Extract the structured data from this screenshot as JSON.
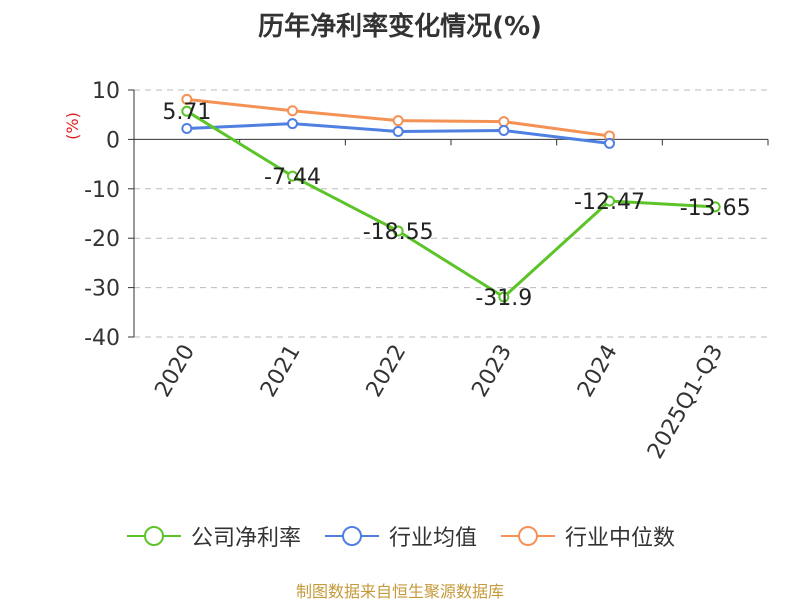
{
  "title": "历年净利率变化情况(%)",
  "source_note": "制图数据来自恒生聚源数据库",
  "colors": {
    "company": "#5cc428",
    "industry_avg": "#4f7fe0",
    "industry_median": "#f49256",
    "axis_unit": "#e02020",
    "text": "#333333",
    "grid": "#bbbbbb",
    "source": "#c59a3a"
  },
  "chart_data": {
    "type": "line",
    "title": "历年净利率变化情况(%)",
    "ylabel": "(%)",
    "xlabel": "",
    "ylim": [
      -40,
      10
    ],
    "yticks": [
      10,
      0,
      -10,
      -20,
      -30,
      -40
    ],
    "grid": true,
    "legend_position": "bottom",
    "categories": [
      "2020",
      "2021",
      "2022",
      "2023",
      "2024",
      "2025Q1-Q3"
    ],
    "series": [
      {
        "name": "公司净利率",
        "key": "company",
        "values": [
          5.71,
          -7.44,
          -18.55,
          -31.9,
          -12.47,
          -13.65
        ],
        "labels": [
          "5.71",
          "-7.44",
          "-18.55",
          "-31.9",
          "-12.47",
          "-13.65"
        ]
      },
      {
        "name": "行业均值",
        "key": "industry_avg",
        "values": [
          2.2,
          3.2,
          1.6,
          1.8,
          -0.8,
          null
        ]
      },
      {
        "name": "行业中位数",
        "key": "industry_median",
        "values": [
          8.1,
          5.8,
          3.8,
          3.6,
          0.7,
          null
        ]
      }
    ]
  }
}
